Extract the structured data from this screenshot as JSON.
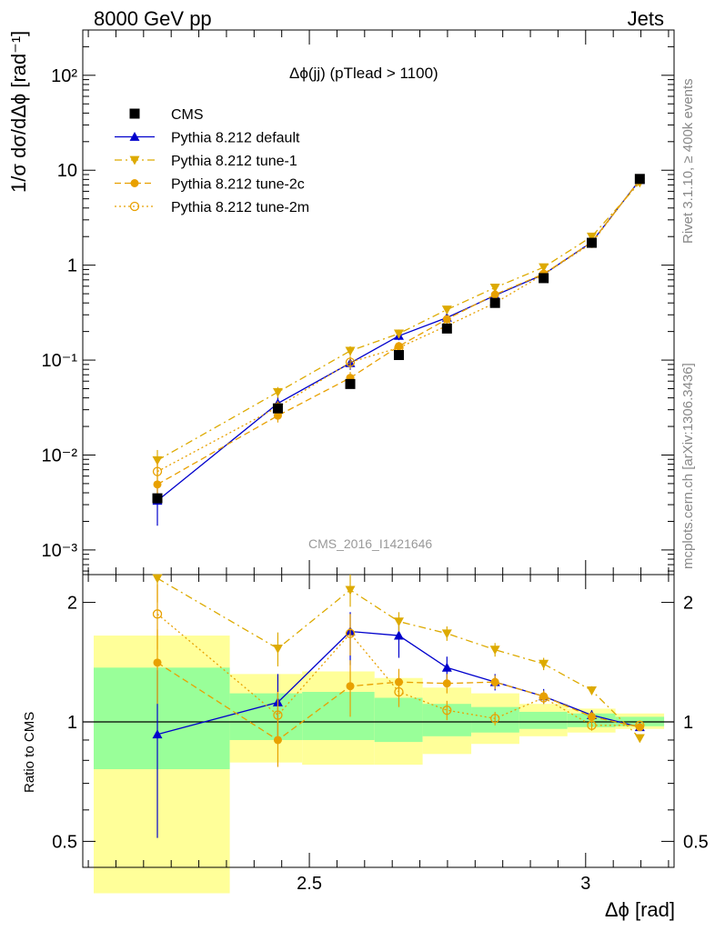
{
  "header": {
    "energy": "8000 GeV pp",
    "category": "Jets",
    "rivet": "Rivet 3.1.10, ≥ 400k events",
    "mcplots": "mcplots.cern.ch [arXiv:1306.3436]",
    "analysis": "CMS_2016_I1421646",
    "plot_title": "Δϕ(jj) (pTlead >  1100)"
  },
  "chart_data": [
    {
      "type": "line",
      "panel": "main",
      "ylabel": "1/σ dσ/dΔϕ [rad⁻¹]",
      "yscale": "log",
      "ylim": [
        0.00055,
        300
      ],
      "xlim": [
        2.09,
        3.16
      ],
      "ytick_labels": [
        "10⁻³",
        "10⁻²",
        "10⁻¹",
        "1",
        "10",
        "10²"
      ],
      "x": [
        2.225,
        2.443,
        2.574,
        2.662,
        2.749,
        2.836,
        2.924,
        3.011,
        3.098
      ],
      "series": [
        {
          "name": "CMS",
          "color": "#000000",
          "style": "data",
          "values": [
            0.0035,
            0.031,
            0.056,
            0.113,
            0.215,
            0.4,
            0.73,
            1.72,
            8.1
          ]
        },
        {
          "name": "Pythia 8.212 default",
          "color": "#0000cc",
          "style": "solid",
          "marker": "triangle-up",
          "values": [
            0.0033,
            0.035,
            0.093,
            0.18,
            0.28,
            0.48,
            0.8,
            1.75,
            7.9
          ],
          "err": [
            0.0015,
            0.006,
            0.014,
            0.018,
            0.02,
            0.02,
            0.03,
            0.05,
            0.1
          ]
        },
        {
          "name": "Pythia 8.212 tune-1",
          "color": "#ddaa00",
          "style": "dashdot",
          "marker": "triangle-down",
          "values": [
            0.0088,
            0.046,
            0.125,
            0.19,
            0.34,
            0.58,
            0.95,
            2.0,
            7.4
          ],
          "err": [
            0.0025,
            0.006,
            0.015,
            0.02,
            0.03,
            0.03,
            0.04,
            0.06,
            0.1
          ]
        },
        {
          "name": "Pythia 8.212 tune-2c",
          "color": "#e8a000",
          "style": "dashed",
          "marker": "circle",
          "values": [
            0.0049,
            0.026,
            0.065,
            0.14,
            0.27,
            0.49,
            0.81,
            1.75,
            7.9
          ],
          "err": [
            0.0015,
            0.004,
            0.01,
            0.015,
            0.02,
            0.02,
            0.03,
            0.05,
            0.1
          ]
        },
        {
          "name": "Pythia 8.212 tune-2m",
          "color": "#e8a000",
          "style": "dotted",
          "marker": "open-circle",
          "values": [
            0.0067,
            0.032,
            0.095,
            0.135,
            0.23,
            0.4,
            0.8,
            1.7,
            8.0
          ],
          "err": [
            0.002,
            0.005,
            0.014,
            0.015,
            0.02,
            0.02,
            0.03,
            0.05,
            0.1
          ]
        }
      ]
    },
    {
      "type": "line",
      "panel": "ratio",
      "ylabel": "Ratio to CMS",
      "xlabel": "Δϕ [rad]",
      "yscale": "log",
      "ylim": [
        0.43,
        2.35
      ],
      "xlim": [
        2.09,
        3.16
      ],
      "ytick_labels": [
        "0.5",
        "1",
        "2"
      ],
      "xtick_labels": [
        "2.5",
        "3"
      ],
      "bins": [
        2.09,
        2.356,
        2.487,
        2.618,
        2.705,
        2.793,
        2.88,
        2.967,
        3.054,
        3.142
      ],
      "band_green_lo": [
        0.76,
        0.9,
        0.9,
        0.89,
        0.92,
        0.94,
        0.96,
        0.97,
        0.975
      ],
      "band_green_hi": [
        1.37,
        1.18,
        1.19,
        1.15,
        1.11,
        1.09,
        1.06,
        1.05,
        1.03
      ],
      "band_yellow_lo": [
        0.37,
        0.79,
        0.78,
        0.78,
        0.83,
        0.88,
        0.92,
        0.94,
        0.96
      ],
      "band_yellow_hi": [
        1.65,
        1.32,
        1.34,
        1.29,
        1.22,
        1.18,
        1.11,
        1.08,
        1.05
      ],
      "x": [
        2.225,
        2.443,
        2.574,
        2.662,
        2.749,
        2.836,
        2.924,
        3.011,
        3.098
      ],
      "series": [
        {
          "name": "Pythia 8.212 default",
          "color": "#0000cc",
          "style": "solid",
          "marker": "triangle-up",
          "values": [
            0.93,
            1.12,
            1.69,
            1.65,
            1.37,
            1.26,
            1.16,
            1.04,
            0.97
          ],
          "err_lo": [
            0.42,
            0.2,
            0.3,
            0.2,
            0.09,
            0.06,
            0.05,
            0.03,
            0.01
          ],
          "err_hi": [
            0.42,
            0.2,
            0.2,
            0.15,
            0.09,
            0.06,
            0.05,
            0.03,
            0.01
          ]
        },
        {
          "name": "Pythia 8.212 tune-1",
          "color": "#ddaa00",
          "style": "dashdot",
          "marker": "triangle-down",
          "values": [
            2.3,
            1.53,
            2.15,
            1.79,
            1.67,
            1.52,
            1.4,
            1.2,
            0.91
          ],
          "err_lo": [
            0.3,
            0.15,
            0.2,
            0.1,
            0.07,
            0.06,
            0.05,
            0.03,
            0.01
          ],
          "err_hi": [
            0.3,
            0.15,
            0.2,
            0.1,
            0.07,
            0.06,
            0.05,
            0.03,
            0.01
          ]
        },
        {
          "name": "Pythia 8.212 tune-2c",
          "color": "#e8a000",
          "style": "dashed",
          "marker": "circle",
          "values": [
            1.41,
            0.9,
            1.23,
            1.26,
            1.25,
            1.26,
            1.16,
            1.03,
            0.97
          ],
          "err_lo": [
            0.3,
            0.13,
            0.2,
            0.1,
            0.07,
            0.05,
            0.04,
            0.03,
            0.01
          ],
          "err_hi": [
            0.3,
            0.13,
            0.2,
            0.1,
            0.07,
            0.05,
            0.04,
            0.03,
            0.01
          ]
        },
        {
          "name": "Pythia 8.212 tune-2m",
          "color": "#e8a000",
          "style": "dotted",
          "marker": "open-circle",
          "values": [
            1.87,
            1.04,
            1.67,
            1.19,
            1.07,
            1.02,
            1.15,
            0.98,
            0.98
          ],
          "err_lo": [
            0.35,
            0.15,
            0.2,
            0.1,
            0.06,
            0.04,
            0.04,
            0.03,
            0.01
          ],
          "err_hi": [
            0.35,
            0.15,
            0.2,
            0.1,
            0.06,
            0.04,
            0.04,
            0.03,
            0.01
          ]
        }
      ]
    }
  ]
}
